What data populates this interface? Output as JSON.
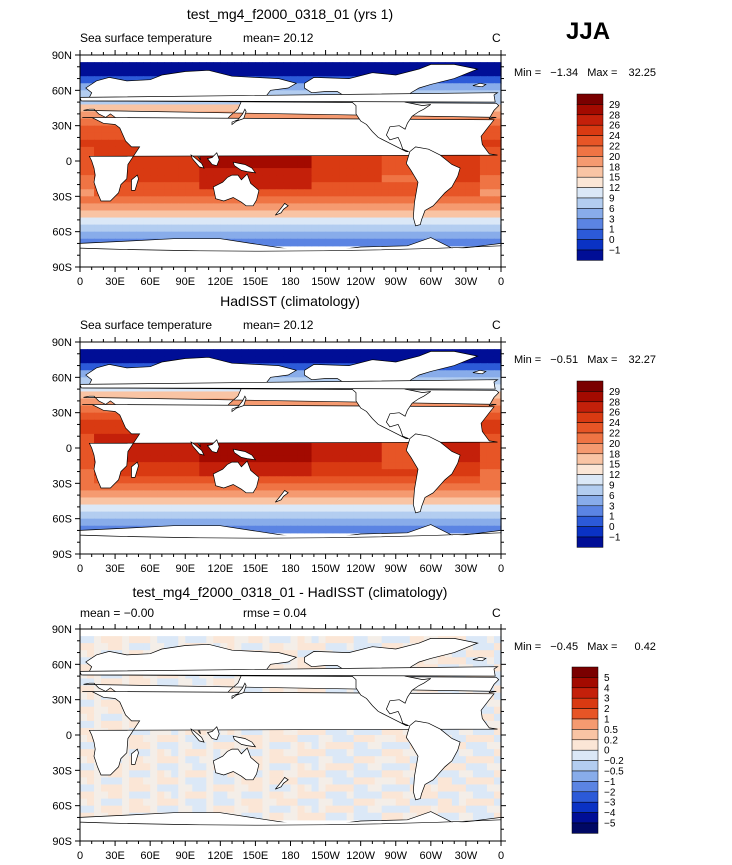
{
  "season": "JJA",
  "panels": [
    {
      "title": "test_mg4_f2000_0318_01 (yrs 1)",
      "left_label": "Sea surface temperature",
      "mean_label": "mean=  20.12",
      "mid_label": "",
      "units": "C",
      "min_label": "Min =",
      "min_value": "−1.34",
      "max_label": "Max =",
      "max_value": "32.25",
      "kind": "abs"
    },
    {
      "title": "HadISST (climatology)",
      "left_label": "Sea surface temperature",
      "mean_label": "mean=  20.12",
      "mid_label": "",
      "units": "C",
      "min_label": "Min =",
      "min_value": "−0.51",
      "max_label": "Max =",
      "max_value": "32.27",
      "kind": "abs"
    },
    {
      "title": "test_mg4_f2000_0318_01 - HadISST (climatology)",
      "left_label": "mean =  −0.00",
      "mean_label": "",
      "mid_label": "rmse =   0.04",
      "units": "C",
      "min_label": "Min =",
      "min_value": "−0.45",
      "max_label": "Max =",
      "max_value": "0.42",
      "kind": "diff"
    }
  ],
  "lat_ticks": [
    "90N",
    "60N",
    "30N",
    "0",
    "30S",
    "60S",
    "90S"
  ],
  "lon_ticks": [
    "0",
    "30E",
    "60E",
    "90E",
    "120E",
    "150E",
    "180",
    "150W",
    "120W",
    "90W",
    "60W",
    "30W",
    "0"
  ],
  "colorbar_abs": {
    "labels": [
      "29",
      "28",
      "26",
      "24",
      "22",
      "20",
      "18",
      "15",
      "12",
      "9",
      "6",
      "3",
      "1",
      "0",
      "−1"
    ],
    "colors": [
      "#7a0000",
      "#a30a00",
      "#c4200a",
      "#d93a12",
      "#e75526",
      "#ef7444",
      "#f59a70",
      "#f9c4a4",
      "#fbe6d6",
      "#dbe8f7",
      "#b3cdf0",
      "#88acea",
      "#5b84e3",
      "#2c5ad8",
      "#0a32c4",
      "#000e96"
    ]
  },
  "colorbar_diff": {
    "labels": [
      "5",
      "4",
      "3",
      "2",
      "1",
      "0.5",
      "0.2",
      "0",
      "−0.2",
      "−0.5",
      "−1",
      "−2",
      "−3",
      "−4",
      "−5"
    ],
    "colors": [
      "#7a0000",
      "#a30a00",
      "#c4200a",
      "#d93a12",
      "#e75526",
      "#f59a70",
      "#f9c4a4",
      "#fbe6d6",
      "#dbe8f7",
      "#b3cdf0",
      "#88acea",
      "#5b84e3",
      "#2c5ad8",
      "#0a32c4",
      "#000e96",
      "#000864"
    ]
  }
}
